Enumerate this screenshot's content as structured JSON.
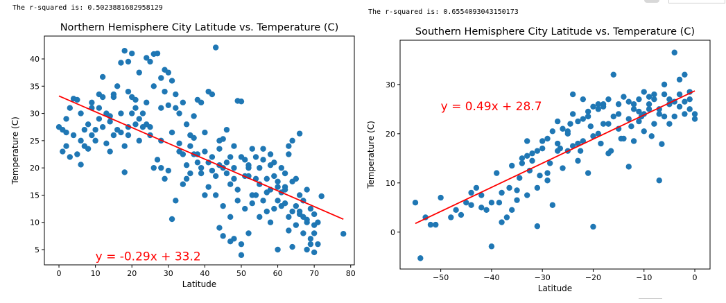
{
  "outputs": {
    "north_rsq": "The r-squared is: 0.5023881682958129",
    "south_rsq": "The r-squared is: 0.6554093043150173"
  },
  "chart_data": [
    {
      "type": "scatter",
      "id": "north",
      "title": "Northern Hemisphere City Latitude vs. Temperature (C)",
      "xlabel": "Latitude",
      "ylabel": "Temperature (C)",
      "xlim": [
        -4,
        81
      ],
      "ylim": [
        2.2,
        44.2
      ],
      "xticks": [
        0,
        10,
        20,
        30,
        40,
        50,
        60,
        70,
        80
      ],
      "yticks": [
        5,
        10,
        15,
        20,
        25,
        30,
        35,
        40
      ],
      "point_color": "#1f77b4",
      "line_color": "#ff0000",
      "regression": {
        "slope": -0.29,
        "intercept": 33.2,
        "x_range": [
          0,
          78
        ]
      },
      "equation": "y = -0.29x + 33.2",
      "equation_at": [
        10,
        3.0
      ],
      "points": [
        [
          1,
          23.0
        ],
        [
          2,
          26.5
        ],
        [
          2,
          29.0
        ],
        [
          3,
          31.0
        ],
        [
          4,
          32.7
        ],
        [
          5,
          32.5
        ],
        [
          6,
          30.0
        ],
        [
          7,
          24.0
        ],
        [
          8,
          28.0
        ],
        [
          9,
          32.0
        ],
        [
          10,
          27.0
        ],
        [
          11,
          31.0
        ],
        [
          12,
          33.0
        ],
        [
          13,
          30.0
        ],
        [
          14,
          28.5
        ],
        [
          15,
          33.5
        ],
        [
          16,
          35.0
        ],
        [
          17,
          30.0
        ],
        [
          18,
          24.0
        ],
        [
          19,
          26.0
        ],
        [
          20,
          33.0
        ],
        [
          21,
          28.0
        ],
        [
          22,
          25.0
        ],
        [
          17,
          39.3
        ],
        [
          18,
          41.5
        ],
        [
          19,
          39.5
        ],
        [
          20,
          41.0
        ],
        [
          22,
          37.5
        ],
        [
          24,
          40.2
        ],
        [
          25,
          39.5
        ],
        [
          26,
          40.9
        ],
        [
          27,
          41.0
        ],
        [
          28,
          36.5
        ],
        [
          29,
          38.0
        ],
        [
          30,
          37.5
        ],
        [
          31,
          36.0
        ],
        [
          32,
          33.5
        ],
        [
          33,
          30.0
        ],
        [
          34,
          32.0
        ],
        [
          35,
          28.0
        ],
        [
          36,
          26.0
        ],
        [
          37,
          29.5
        ],
        [
          38,
          32.5
        ],
        [
          39,
          32.0
        ],
        [
          40,
          26.5
        ],
        [
          41,
          34.0
        ],
        [
          42,
          33.5
        ],
        [
          43,
          42.1
        ],
        [
          44,
          25.0
        ],
        [
          45,
          25.3
        ],
        [
          46,
          27.0
        ],
        [
          47,
          22.0
        ],
        [
          48,
          24.0
        ],
        [
          49,
          32.3
        ],
        [
          50,
          32.2
        ],
        [
          51,
          21.5
        ],
        [
          52,
          20.0
        ],
        [
          53,
          23.5
        ],
        [
          54,
          18.0
        ],
        [
          55,
          17.0
        ],
        [
          56,
          23.5
        ],
        [
          57,
          18.0
        ],
        [
          58,
          22.5
        ],
        [
          59,
          21.0
        ],
        [
          60,
          17.5
        ],
        [
          61,
          15.5
        ],
        [
          62,
          16.5
        ],
        [
          63,
          24.0
        ],
        [
          64,
          25.0
        ],
        [
          65,
          13.0
        ],
        [
          66,
          12.0
        ],
        [
          67,
          11.0
        ],
        [
          68,
          10.5
        ],
        [
          69,
          7.0
        ],
        [
          70,
          9.5
        ],
        [
          71,
          6.0
        ],
        [
          72,
          14.8
        ],
        [
          78,
          7.9
        ],
        [
          66,
          26.3
        ],
        [
          64,
          5.5
        ],
        [
          68,
          5.0
        ],
        [
          70,
          4.5
        ],
        [
          63,
          8.5
        ],
        [
          60,
          5.0
        ],
        [
          58,
          10.0
        ],
        [
          55,
          11.0
        ],
        [
          52,
          8.0
        ],
        [
          50,
          6.0
        ],
        [
          50,
          4.0
        ],
        [
          48,
          7.0
        ],
        [
          47,
          11.0
        ],
        [
          45,
          13.0
        ],
        [
          44,
          9.0
        ],
        [
          43,
          15.0
        ],
        [
          41,
          16.5
        ],
        [
          40,
          15.0
        ],
        [
          39,
          19.0
        ],
        [
          38,
          21.0
        ],
        [
          37,
          22.5
        ],
        [
          36,
          19.0
        ],
        [
          35,
          18.0
        ],
        [
          34,
          17.0
        ],
        [
          33,
          23.0
        ],
        [
          32,
          14.0
        ],
        [
          31,
          10.6
        ],
        [
          30,
          19.5
        ],
        [
          29,
          18.0
        ],
        [
          28,
          20.0
        ],
        [
          27,
          21.5
        ],
        [
          26,
          20.0
        ],
        [
          25,
          26.0
        ],
        [
          24,
          28.0
        ],
        [
          23,
          27.5
        ],
        [
          22,
          29.0
        ],
        [
          21,
          31.0
        ],
        [
          20,
          30.0
        ],
        [
          19,
          27.5
        ],
        [
          18,
          19.2
        ],
        [
          17,
          26.5
        ],
        [
          16,
          27.0
        ],
        [
          15,
          26.0
        ],
        [
          14,
          23.0
        ],
        [
          13,
          24.5
        ],
        [
          12,
          27.5
        ],
        [
          11,
          29.0
        ],
        [
          10,
          25.0
        ],
        [
          9,
          26.0
        ],
        [
          8,
          23.5
        ],
        [
          7,
          27.0
        ],
        [
          6,
          25.0
        ],
        [
          5,
          22.5
        ],
        [
          4,
          26.0
        ],
        [
          3,
          22.0
        ],
        [
          2,
          24.0
        ],
        [
          1,
          27.0
        ],
        [
          0,
          27.5
        ],
        [
          6,
          20.6
        ],
        [
          12,
          36.7
        ],
        [
          15,
          33.0
        ],
        [
          25,
          27.5
        ],
        [
          28,
          31.0
        ],
        [
          30,
          31.5
        ],
        [
          33,
          24.5
        ],
        [
          36,
          24.0
        ],
        [
          39,
          20.0
        ],
        [
          42,
          19.5
        ],
        [
          44,
          20.5
        ],
        [
          46,
          19.0
        ],
        [
          48,
          18.0
        ],
        [
          52,
          18.5
        ],
        [
          54,
          15.0
        ],
        [
          56,
          14.0
        ],
        [
          58,
          16.0
        ],
        [
          60,
          14.0
        ],
        [
          62,
          13.5
        ],
        [
          64,
          12.0
        ],
        [
          66,
          11.5
        ],
        [
          68,
          10.0
        ],
        [
          70,
          8.0
        ],
        [
          62,
          16.0
        ],
        [
          57,
          12.0
        ],
        [
          53,
          13.5
        ],
        [
          47,
          17.0
        ],
        [
          45,
          20.0
        ],
        [
          41,
          21.0
        ],
        [
          38,
          22.5
        ],
        [
          35,
          20.5
        ],
        [
          43,
          18.5
        ],
        [
          49,
          16.0
        ],
        [
          51,
          18.5
        ],
        [
          55,
          20.0
        ],
        [
          59,
          18.5
        ],
        [
          61,
          20.0
        ],
        [
          63,
          22.5
        ],
        [
          65,
          18.0
        ],
        [
          67,
          14.0
        ],
        [
          69,
          12.5
        ],
        [
          71,
          10.0
        ],
        [
          40,
          23.0
        ],
        [
          42,
          22.0
        ],
        [
          44,
          23.5
        ],
        [
          46,
          21.0
        ],
        [
          48,
          20.0
        ],
        [
          50,
          22.0
        ],
        [
          52,
          20.5
        ],
        [
          54,
          22.0
        ],
        [
          56,
          21.5
        ],
        [
          58,
          20.5
        ],
        [
          60,
          16.5
        ],
        [
          62,
          19.0
        ],
        [
          64,
          17.5
        ],
        [
          66,
          15.0
        ],
        [
          68,
          16.0
        ],
        [
          70,
          11.5
        ],
        [
          45,
          7.5
        ],
        [
          47,
          6.5
        ],
        [
          49,
          14.0
        ],
        [
          51,
          12.5
        ],
        [
          53,
          15.0
        ],
        [
          57,
          15.5
        ],
        [
          59,
          12.5
        ],
        [
          61,
          13.0
        ],
        [
          63,
          11.0
        ],
        [
          65,
          9.5
        ],
        [
          67,
          8.0
        ],
        [
          69,
          6.0
        ],
        [
          28,
          25.0
        ],
        [
          31,
          26.5
        ],
        [
          34,
          22.5
        ],
        [
          37,
          25.5
        ],
        [
          24,
          32.0
        ],
        [
          26,
          35.0
        ],
        [
          29,
          34.0
        ],
        [
          32,
          31.0
        ],
        [
          23,
          30.0
        ],
        [
          21,
          32.5
        ],
        [
          19,
          34.0
        ],
        [
          14,
          29.5
        ],
        [
          11,
          33.5
        ],
        [
          9,
          31.0
        ]
      ]
    },
    {
      "type": "scatter",
      "id": "south",
      "title": "Southern Hemisphere City Latitude vs. Temperature (C)",
      "xlabel": "Latitude",
      "ylabel": "Temperature (C)",
      "xlim": [
        -58,
        3
      ],
      "ylim": [
        -7.5,
        39
      ],
      "xticks": [
        -50,
        -40,
        -30,
        -20,
        -10,
        0
      ],
      "yticks": [
        0,
        10,
        20,
        30
      ],
      "point_color": "#1f77b4",
      "line_color": "#ff0000",
      "regression": {
        "slope": 0.49,
        "intercept": 28.7,
        "x_range": [
          -55,
          0
        ]
      },
      "equation": "y = 0.49x + 28.7",
      "equation_at": [
        -50,
        24.8
      ],
      "points": [
        [
          -55,
          6.0
        ],
        [
          -54,
          -5.3
        ],
        [
          -53,
          3.0
        ],
        [
          -52,
          1.5
        ],
        [
          -51,
          1.5
        ],
        [
          -50,
          7.0
        ],
        [
          -47,
          4.5
        ],
        [
          -45,
          6.0
        ],
        [
          -44,
          8.0
        ],
        [
          -43,
          9.0
        ],
        [
          -42,
          5.0
        ],
        [
          -41,
          4.5
        ],
        [
          -40,
          -2.9
        ],
        [
          -39,
          12.0
        ],
        [
          -38,
          2.0
        ],
        [
          -37,
          3.0
        ],
        [
          -36,
          4.5
        ],
        [
          -35,
          8.5
        ],
        [
          -34,
          15.0
        ],
        [
          -33,
          18.5
        ],
        [
          -32,
          14.5
        ],
        [
          -31,
          1.2
        ],
        [
          -30,
          17.0
        ],
        [
          -29,
          12.0
        ],
        [
          -28,
          5.5
        ],
        [
          -27,
          22.5
        ],
        [
          -26,
          13.0
        ],
        [
          -25,
          20.0
        ],
        [
          -24,
          28.0
        ],
        [
          -23,
          18.0
        ],
        [
          -22,
          23.0
        ],
        [
          -21,
          24.5
        ],
        [
          -20,
          1.1
        ],
        [
          -19,
          26.0
        ],
        [
          -18,
          22.0
        ],
        [
          -17,
          16.0
        ],
        [
          -16,
          32.0
        ],
        [
          -15,
          26.0
        ],
        [
          -14,
          19.0
        ],
        [
          -13,
          13.3
        ],
        [
          -12,
          25.0
        ],
        [
          -11,
          27.0
        ],
        [
          -10,
          24.0
        ],
        [
          -9,
          25.0
        ],
        [
          -8,
          28.0
        ],
        [
          -7,
          10.5
        ],
        [
          -6,
          30.0
        ],
        [
          -5,
          26.0
        ],
        [
          -4,
          36.5
        ],
        [
          -3,
          31.0
        ],
        [
          -2,
          32.0
        ],
        [
          -1,
          27.0
        ],
        [
          0,
          23.0
        ],
        [
          -6.5,
          17.9
        ],
        [
          -8.5,
          19.5
        ],
        [
          -10.5,
          23.5
        ],
        [
          -12.5,
          21.5
        ],
        [
          -14.5,
          19.0
        ],
        [
          -16.5,
          16.5
        ],
        [
          -18.5,
          18.0
        ],
        [
          -20.5,
          21.5
        ],
        [
          -22.5,
          16.5
        ],
        [
          -24.5,
          22.0
        ],
        [
          -26.5,
          17.0
        ],
        [
          -28.5,
          14.0
        ],
        [
          -30.5,
          11.5
        ],
        [
          -32.5,
          12.5
        ],
        [
          -34.5,
          11.0
        ],
        [
          -36.5,
          9.0
        ],
        [
          -38.5,
          6.0
        ],
        [
          -29,
          19.0
        ],
        [
          -31,
          16.5
        ],
        [
          -33,
          15.5
        ],
        [
          -27,
          18.0
        ],
        [
          -25,
          16.5
        ],
        [
          -23,
          14.5
        ],
        [
          -21,
          12.0
        ],
        [
          -19,
          20.0
        ],
        [
          -17,
          22.0
        ],
        [
          -15,
          24.0
        ],
        [
          -13,
          23.0
        ],
        [
          -11,
          24.5
        ],
        [
          -9,
          26.0
        ],
        [
          -7,
          25.0
        ],
        [
          -5,
          27.0
        ],
        [
          -3,
          28.0
        ],
        [
          -1,
          28.5
        ],
        [
          -2,
          24.0
        ],
        [
          -4,
          26.5
        ],
        [
          -6,
          23.5
        ],
        [
          -8,
          22.0
        ],
        [
          -10,
          20.5
        ],
        [
          -12,
          18.5
        ],
        [
          -18,
          26.0
        ],
        [
          -20,
          25.5
        ],
        [
          -22,
          27.0
        ],
        [
          -24,
          24.0
        ],
        [
          -26,
          21.0
        ],
        [
          -28,
          20.5
        ],
        [
          -30,
          18.5
        ],
        [
          -32,
          16.0
        ],
        [
          -34,
          14.0
        ],
        [
          -36,
          13.5
        ],
        [
          -38,
          8.0
        ],
        [
          -40,
          6.0
        ],
        [
          -42,
          7.5
        ],
        [
          -44,
          5.5
        ],
        [
          -46,
          3.5
        ],
        [
          -48,
          3.0
        ],
        [
          -4,
          23.5
        ],
        [
          -3,
          25.5
        ],
        [
          -2,
          26.5
        ],
        [
          -1,
          25.0
        ],
        [
          0,
          24.0
        ],
        [
          -5,
          22.0
        ],
        [
          -7,
          24.0
        ],
        [
          -9,
          27.5
        ],
        [
          -11,
          22.5
        ],
        [
          -13,
          26.5
        ],
        [
          -15,
          21.0
        ],
        [
          -17,
          27.0
        ],
        [
          -19,
          25.0
        ],
        [
          -21,
          23.5
        ],
        [
          -23,
          22.5
        ],
        [
          -25,
          20.5
        ],
        [
          -27,
          16.5
        ],
        [
          -29,
          10.5
        ],
        [
          -31,
          9.0
        ],
        [
          -33,
          7.5
        ],
        [
          -35,
          6.5
        ],
        [
          -6,
          28.0
        ],
        [
          -8,
          27.0
        ],
        [
          -10,
          28.5
        ],
        [
          -12,
          26.0
        ],
        [
          -14,
          27.5
        ],
        [
          -16,
          23.5
        ],
        [
          -18,
          25.5
        ],
        [
          -20,
          19.5
        ],
        [
          -22,
          18.5
        ],
        [
          -24,
          17.5
        ]
      ]
    }
  ]
}
